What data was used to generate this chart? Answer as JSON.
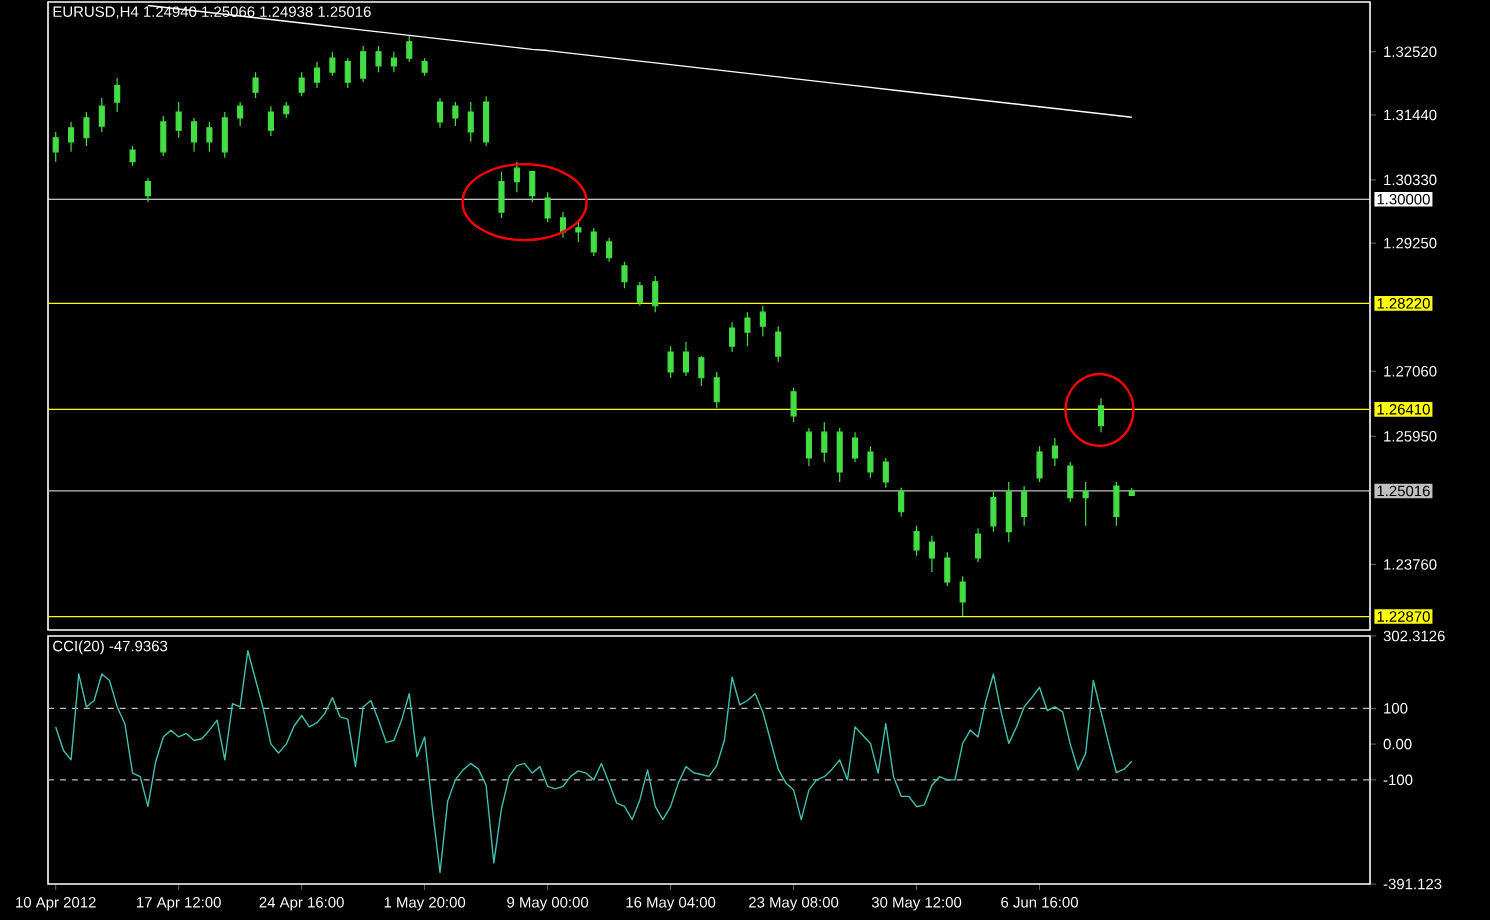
{
  "chart_data": [
    {
      "type": "candlestick",
      "title": "EURUSD,H4 1.24940 1.25066 1.24938 1.25016",
      "color": "#44dd44",
      "categories": [
        null,
        null,
        null,
        null,
        null,
        null,
        null,
        null,
        null,
        null,
        null,
        null,
        null,
        null,
        null,
        null,
        null,
        null,
        null,
        null,
        null,
        null,
        null,
        null,
        null,
        null,
        null,
        null,
        null,
        null,
        null,
        null,
        null,
        null,
        null,
        null,
        null,
        null,
        null,
        null,
        null,
        null,
        null,
        null,
        null,
        null,
        null,
        null,
        null,
        null,
        null,
        null,
        null,
        null,
        null,
        null,
        null,
        null,
        null,
        null,
        null,
        null,
        null,
        null,
        null,
        null,
        null,
        null,
        null,
        null,
        null
      ],
      "ohlc": [
        [
          1.3081,
          1.3115,
          1.3064,
          1.3105
        ],
        [
          1.3098,
          1.3132,
          1.3081,
          1.3122
        ],
        [
          1.3105,
          1.3149,
          1.3091,
          1.3139
        ],
        [
          1.3125,
          1.3173,
          1.3115,
          1.3159
        ],
        [
          1.3166,
          1.3207,
          1.3149,
          1.3194
        ],
        [
          1.3084,
          1.3091,
          1.3057,
          1.3064
        ],
        [
          1.303,
          1.3036,
          1.2995,
          1.3006
        ],
        [
          1.3081,
          1.3142,
          1.3074,
          1.3132
        ],
        [
          1.3118,
          1.3166,
          1.3105,
          1.3149
        ],
        [
          1.3132,
          1.3139,
          1.3081,
          1.3098
        ],
        [
          1.3098,
          1.3132,
          1.3081,
          1.3122
        ],
        [
          1.3081,
          1.3149,
          1.3071,
          1.3139
        ],
        [
          1.3139,
          1.3166,
          1.3125,
          1.3159
        ],
        [
          1.3183,
          1.3217,
          1.3173,
          1.3207
        ],
        [
          1.3149,
          1.3159,
          1.3108,
          1.3118
        ],
        [
          1.3146,
          1.3166,
          1.3139,
          1.3159
        ],
        [
          1.3183,
          1.3217,
          1.3176,
          1.3207
        ],
        [
          1.32,
          1.3235,
          1.319,
          1.3224
        ],
        [
          1.3217,
          1.3252,
          1.3211,
          1.3241
        ],
        [
          1.3235,
          1.3241,
          1.319,
          1.32
        ],
        [
          1.3207,
          1.3262,
          1.32,
          1.3252
        ],
        [
          1.3252,
          1.3262,
          1.3217,
          1.3228
        ],
        [
          1.3228,
          1.3252,
          1.3217,
          1.3241
        ],
        [
          1.3241,
          1.3279,
          1.3235,
          1.3269
        ],
        [
          1.3235,
          1.3241,
          1.3211,
          1.3217
        ],
        [
          1.3166,
          1.3173,
          1.3122,
          1.3132
        ],
        [
          1.3159,
          1.3166,
          1.3125,
          1.3139
        ],
        [
          1.3149,
          1.3166,
          1.3098,
          1.3115
        ],
        [
          1.3166,
          1.3176,
          1.3091,
          1.3098
        ],
        [
          1.2978,
          1.3047,
          1.2968,
          1.303
        ],
        [
          1.303,
          1.3064,
          1.3012,
          1.3053
        ],
        [
          1.3047,
          1.3047,
          1.2995,
          1.3006
        ],
        [
          1.3002,
          1.3012,
          1.2961,
          1.2968
        ],
        [
          1.2968,
          1.2978,
          1.2934,
          1.2944
        ],
        [
          1.2944,
          1.2961,
          1.2927,
          1.2951
        ],
        [
          1.2944,
          1.2951,
          1.2903,
          1.291
        ],
        [
          1.2927,
          1.2934,
          1.2893,
          1.29
        ],
        [
          1.2886,
          1.2893,
          1.2848,
          1.2859
        ],
        [
          1.2852,
          1.2859,
          1.2818,
          1.2824
        ],
        [
          1.2859,
          1.2869,
          1.2807,
          1.2818
        ],
        [
          1.2739,
          1.2749,
          1.2695,
          1.2705
        ],
        [
          1.2705,
          1.2756,
          1.2698,
          1.2739
        ],
        [
          1.2729,
          1.2732,
          1.2681,
          1.2695
        ],
        [
          1.2695,
          1.2705,
          1.2643,
          1.2654
        ],
        [
          1.2749,
          1.279,
          1.2739,
          1.278
        ],
        [
          1.2773,
          1.2807,
          1.2749,
          1.2797
        ],
        [
          1.2807,
          1.2818,
          1.2766,
          1.2783
        ],
        [
          1.2773,
          1.2783,
          1.2722,
          1.2732
        ],
        [
          1.2671,
          1.2678,
          1.2619,
          1.263
        ],
        [
          1.2602,
          1.2609,
          1.2544,
          1.2558
        ],
        [
          1.2568,
          1.2619,
          1.2551,
          1.2602
        ],
        [
          1.2602,
          1.2609,
          1.2517,
          1.2534
        ],
        [
          1.2558,
          1.2602,
          1.2551,
          1.2592
        ],
        [
          1.2568,
          1.2578,
          1.2524,
          1.2534
        ],
        [
          1.2551,
          1.2558,
          1.2507,
          1.2517
        ],
        [
          1.25,
          1.2507,
          1.2458,
          1.2466
        ],
        [
          1.2432,
          1.2442,
          1.2391,
          1.2401
        ],
        [
          1.2387,
          1.2425,
          1.2363,
          1.2414
        ],
        [
          1.2387,
          1.2397,
          1.2339,
          1.2346
        ],
        [
          1.2346,
          1.2356,
          1.2288,
          1.2312
        ],
        [
          1.2387,
          1.2438,
          1.238,
          1.2428
        ],
        [
          1.2442,
          1.25,
          1.2432,
          1.249
        ],
        [
          1.2432,
          1.2517,
          1.2414,
          1.25
        ],
        [
          1.25,
          1.251,
          1.2442,
          1.2458
        ],
        [
          1.2524,
          1.2578,
          1.2517,
          1.2568
        ],
        [
          1.2558,
          1.2592,
          1.2544,
          1.2578
        ],
        [
          1.2544,
          1.2551,
          1.2483,
          1.249
        ],
        [
          1.25,
          1.2517,
          1.2442,
          1.249
        ],
        [
          1.2613,
          1.266,
          1.2602,
          1.2647
        ],
        [
          1.251,
          1.2517,
          1.2442,
          1.2458
        ],
        [
          1.2494,
          1.25066,
          1.24938,
          1.25016
        ]
      ],
      "series": [
        {
          "type": "line",
          "color": "#ffffff",
          "values": [
            null,
            null,
            null,
            null,
            null,
            null,
            1.3331,
            1.3328,
            1.3325,
            1.3322,
            1.3319,
            1.3316,
            1.3313,
            1.331,
            1.3307,
            1.3304,
            1.3301,
            1.3298,
            1.3295,
            1.3292,
            1.3289,
            1.3286,
            1.3283,
            1.328,
            1.3277,
            1.3274,
            1.3271,
            1.3268,
            1.3265,
            1.3262,
            1.3259,
            1.3256,
            1.3254,
            1.3251,
            1.3248,
            1.3245,
            1.3242,
            1.3239,
            1.3236,
            1.3233,
            1.323,
            1.3227,
            1.3224,
            1.3221,
            1.3218,
            1.3215,
            1.3212,
            1.3209,
            1.3206,
            1.3203,
            1.32,
            1.3197,
            1.3194,
            1.3191,
            1.3188,
            1.3185,
            1.3182,
            1.3179,
            1.3176,
            1.3173,
            1.317,
            1.3167,
            1.3164,
            1.3161,
            1.3158,
            1.3155,
            1.3152,
            1.3149,
            1.3146,
            1.3143,
            1.314
          ]
        }
      ],
      "ylim": [
        1.2264,
        1.3337
      ],
      "yticks": [
        {
          "value": 1.3252,
          "label": "1.32520"
        },
        {
          "value": 1.3144,
          "label": "1.31440"
        },
        {
          "value": 1.3033,
          "label": "1.30330"
        },
        {
          "value": 1.2925,
          "label": "1.29250"
        },
        {
          "value": 1.2706,
          "label": "1.27060"
        },
        {
          "value": 1.2595,
          "label": "1.25950"
        },
        {
          "value": 1.2376,
          "label": "1.23760"
        }
      ],
      "ref_lines": [
        {
          "axis": "y",
          "value": 1.3,
          "label": "1.30000",
          "color": "#ffffff"
        },
        {
          "axis": "y",
          "value": 1.2822,
          "label": "1.28220",
          "color": "#ffff00"
        },
        {
          "axis": "y",
          "value": 1.2641,
          "label": "1.26410",
          "color": "#ffff00"
        },
        {
          "axis": "y",
          "value": 1.25016,
          "label": "1.25016",
          "color": "#c0c0c0"
        },
        {
          "axis": "y",
          "value": 1.2287,
          "label": "1.22870",
          "color": "#ffff00"
        }
      ],
      "tick_labels": "y"
    },
    {
      "type": "line",
      "title": "CCI(20) -47.9363",
      "color": "#40c0b0",
      "categories": [
        "10 Apr 2012",
        null,
        null,
        null,
        null,
        null,
        null,
        null,
        null,
        null,
        null,
        null,
        null,
        null,
        null,
        null,
        "17 Apr 12:00",
        null,
        null,
        null,
        null,
        null,
        null,
        null,
        null,
        null,
        null,
        null,
        null,
        null,
        null,
        null,
        "24 Apr 16:00",
        null,
        null,
        null,
        null,
        null,
        null,
        null,
        null,
        null,
        null,
        null,
        null,
        null,
        null,
        null,
        "1 May 20:00",
        null,
        null,
        null,
        null,
        null,
        null,
        null,
        null,
        null,
        null,
        null,
        null,
        null,
        null,
        null,
        "9 May 00:00",
        null,
        null,
        null,
        null,
        null,
        null,
        null,
        null,
        null,
        null,
        null,
        null,
        null,
        null,
        null,
        "16 May 04:00",
        null,
        null,
        null,
        null,
        null,
        null,
        null,
        null,
        null,
        null,
        null,
        null,
        null,
        null,
        null,
        "23 May 08:00",
        null,
        null,
        null,
        null,
        null,
        null,
        null,
        null,
        null,
        null,
        null,
        null,
        null,
        null,
        null,
        "30 May 12:00",
        null,
        null,
        null,
        null,
        null,
        null,
        null,
        null,
        null,
        null,
        null,
        null,
        null,
        null,
        null,
        "6 Jun 16:00",
        null,
        null,
        null,
        null,
        null,
        null,
        null,
        null,
        null,
        null,
        null,
        null
      ],
      "values": [
        48,
        -17,
        -44,
        196,
        104,
        122,
        196,
        178,
        104,
        57,
        -81,
        -91,
        -174,
        -50,
        20,
        39,
        20,
        30,
        10,
        15,
        39,
        67,
        -44,
        113,
        104,
        261,
        180,
        100,
        0,
        -25,
        0,
        50,
        80,
        48,
        60,
        85,
        130,
        76,
        70,
        -63,
        104,
        122,
        67,
        5,
        10,
        67,
        141,
        -35,
        20,
        -180,
        -359,
        -160,
        -100,
        -72,
        -54,
        -70,
        -115,
        -332,
        -180,
        -90,
        -60,
        -54,
        -81,
        -63,
        -118,
        -125,
        -118,
        -90,
        -75,
        -81,
        -100,
        -54,
        -109,
        -165,
        -174,
        -211,
        -156,
        -72,
        -174,
        -211,
        -174,
        -109,
        -63,
        -80,
        -85,
        -90,
        -60,
        11,
        187,
        110,
        122,
        141,
        90,
        10,
        -70,
        -109,
        -128,
        -211,
        -128,
        -100,
        -91,
        -70,
        -44,
        -100,
        48,
        25,
        2,
        -81,
        57,
        -91,
        -146,
        -146,
        -175,
        -170,
        -115,
        -91,
        -100,
        -100,
        2,
        39,
        20,
        120,
        196,
        90,
        2,
        48,
        104,
        130,
        159,
        94,
        104,
        90,
        0,
        -72,
        -26,
        178,
        90,
        2,
        -80,
        -70,
        -48
      ],
      "ylim": [
        -391.123,
        302.3126
      ],
      "yticks": [
        302.3126,
        100,
        {
          "value": 0,
          "label": "0.00"
        },
        -100,
        -391.123
      ],
      "ref_lines": [
        {
          "axis": "y",
          "value": 100,
          "color": "#c0c0c0",
          "line_style": "dashed"
        },
        {
          "axis": "y",
          "value": -100,
          "color": "#c0c0c0",
          "line_style": "dashed"
        }
      ]
    }
  ]
}
